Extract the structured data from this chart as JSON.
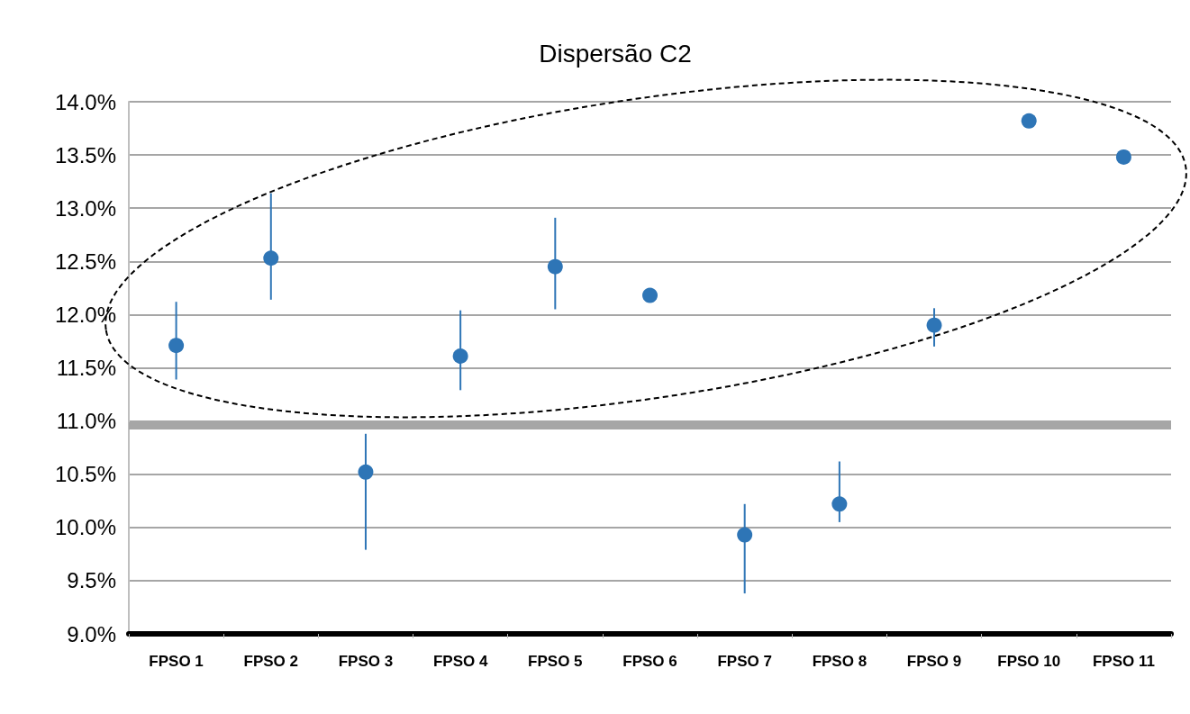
{
  "chart_data": {
    "type": "scatter",
    "title": "Dispersão C2",
    "categories": [
      "FPSO 1",
      "FPSO 2",
      "FPSO 3",
      "FPSO 4",
      "FPSO 5",
      "FPSO 6",
      "FPSO 7",
      "FPSO 8",
      "FPSO 9",
      "FPSO 10",
      "FPSO 11"
    ],
    "series": [
      {
        "color": "#2e75b6",
        "values": [
          11.71,
          12.53,
          10.52,
          11.61,
          12.45,
          12.18,
          9.93,
          10.22,
          11.9,
          13.82,
          13.48
        ],
        "errors": [
          [
            11.39,
            12.12
          ],
          [
            12.14,
            13.14
          ],
          [
            9.79,
            10.88
          ],
          [
            11.29,
            12.04
          ],
          [
            12.05,
            12.91
          ],
          null,
          [
            9.38,
            10.22
          ],
          [
            10.05,
            10.62
          ],
          [
            11.7,
            12.06
          ],
          null,
          null
        ]
      }
    ],
    "ylim": [
      9,
      14
    ],
    "yticks": [
      {
        "value": 9,
        "label": "9.0%"
      },
      {
        "value": 9.5,
        "label": "9.5%"
      },
      {
        "value": 10,
        "label": "10.0%"
      },
      {
        "value": 10.5,
        "label": "10.5%"
      },
      {
        "value": 11,
        "label": "11.0%"
      },
      {
        "value": 11.5,
        "label": "11.5%"
      },
      {
        "value": 12,
        "label": "12.0%"
      },
      {
        "value": 12.5,
        "label": "12.5%"
      },
      {
        "value": 13,
        "label": "13.0%"
      },
      {
        "value": 13.5,
        "label": "13.5%"
      },
      {
        "value": 14,
        "label": "14.0%"
      }
    ],
    "ref_lines": [
      {
        "axis": "y",
        "value": 10.96,
        "color": "#a6a6a6"
      }
    ],
    "grid": "y",
    "legend": false,
    "marker": "circle"
  }
}
